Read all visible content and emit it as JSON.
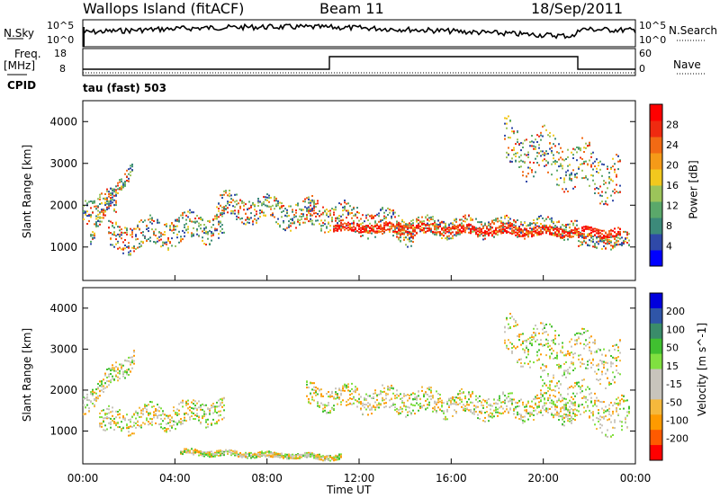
{
  "header": {
    "station": "Wallops Island (fitACF)",
    "beam": "Beam 11",
    "date": "18/Sep/2011"
  },
  "left_labels": {
    "nsky": "N.Sky",
    "freq": "Freq.",
    "mhz": "[MHz]",
    "cpid": "CPID"
  },
  "right_labels": {
    "nsearch": "N.Search",
    "nave": "Nave"
  },
  "noise_panel": {
    "ticks_left": [
      "10^5",
      "10^0"
    ],
    "ticks_right": [
      "10^5",
      "10^0"
    ]
  },
  "freq_panel": {
    "ticks_left": [
      "18",
      "8"
    ],
    "ticks_right": [
      "60",
      "0"
    ]
  },
  "cpid_text": "tau (fast) 503",
  "colors": {
    "power_scale": [
      "#0000ff",
      "#2f49a8",
      "#3c8a7a",
      "#5aa86a",
      "#9cc45a",
      "#f2c81e",
      "#f59a18",
      "#f26a14",
      "#ef2a10",
      "#ff0000"
    ],
    "velocity_scale": [
      "#ff0000",
      "#ff5a00",
      "#ff9a00",
      "#f5b83c",
      "#c8c4bc",
      "#c8c4bc",
      "#80e040",
      "#40c030",
      "#3a8c6a",
      "#2f55a8",
      "#0000dd"
    ]
  },
  "chart_data": [
    {
      "type": "heatmap",
      "panel": "power",
      "xlabel": "",
      "ylabel": "Slant Range [km]",
      "x_ticks": [
        "00:00",
        "04:00",
        "08:00",
        "12:00",
        "16:00",
        "20:00",
        "00:00"
      ],
      "y_ticks": [
        "1000",
        "2000",
        "3000",
        "4000"
      ],
      "ylim": [
        200,
        4500
      ],
      "colorbar_label": "Power [dB]",
      "colorbar_ticks": [
        "4",
        "8",
        "12",
        "16",
        "20",
        "24",
        "28"
      ],
      "colorbar_range": [
        0,
        30
      ]
    },
    {
      "type": "heatmap",
      "panel": "velocity",
      "xlabel": "Time UT",
      "ylabel": "Slant Range [km]",
      "x_ticks": [
        "00:00",
        "04:00",
        "08:00",
        "12:00",
        "16:00",
        "20:00",
        "00:00"
      ],
      "y_ticks": [
        "1000",
        "2000",
        "3000",
        "4000"
      ],
      "ylim": [
        200,
        4500
      ],
      "colorbar_label": "Velocity [m s^-1]",
      "colorbar_ticks": [
        "200",
        "100",
        "50",
        "15",
        "-15",
        "-50",
        "-100",
        "-200"
      ]
    }
  ]
}
